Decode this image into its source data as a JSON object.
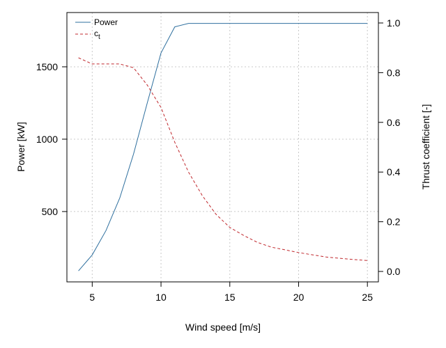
{
  "chart_data": {
    "type": "line",
    "title": "",
    "xlabel": "Wind speed [m/s]",
    "ylabel": "Power [kW]",
    "y2label": "Thrust coefficient [-]",
    "xlim": [
      3.16,
      25.8
    ],
    "ylim": [
      14,
      1875
    ],
    "y2lim": [
      -0.042,
      1.042
    ],
    "grid": true,
    "legend_position": "top-left",
    "x_ticks": [
      5,
      10,
      15,
      20,
      25
    ],
    "y_ticks": [
      500,
      1000,
      1500
    ],
    "y2_ticks": [
      "0.0",
      "0.2",
      "0.4",
      "0.6",
      "0.8",
      "1.0"
    ],
    "x": [
      4,
      5,
      6,
      7,
      8,
      9,
      10,
      11,
      12,
      13,
      14,
      15,
      16,
      17,
      18,
      19,
      20,
      21,
      22,
      23,
      24,
      25
    ],
    "series": [
      {
        "name": "Power",
        "axis": "left",
        "color": "#2e6f9e",
        "style": "solid",
        "values": [
          90,
          200,
          369,
          593,
          897,
          1250,
          1595,
          1776,
          1800,
          1800,
          1800,
          1800,
          1800,
          1800,
          1800,
          1800,
          1800,
          1800,
          1800,
          1800,
          1800,
          1800
        ]
      },
      {
        "name": "c",
        "subscript": "t",
        "axis": "right",
        "color": "#c0282d",
        "style": "dashed",
        "values": [
          0.86,
          0.835,
          0.835,
          0.835,
          0.82,
          0.75,
          0.66,
          0.52,
          0.4,
          0.305,
          0.23,
          0.177,
          0.145,
          0.117,
          0.098,
          0.087,
          0.076,
          0.067,
          0.058,
          0.053,
          0.048,
          0.044
        ]
      }
    ]
  }
}
